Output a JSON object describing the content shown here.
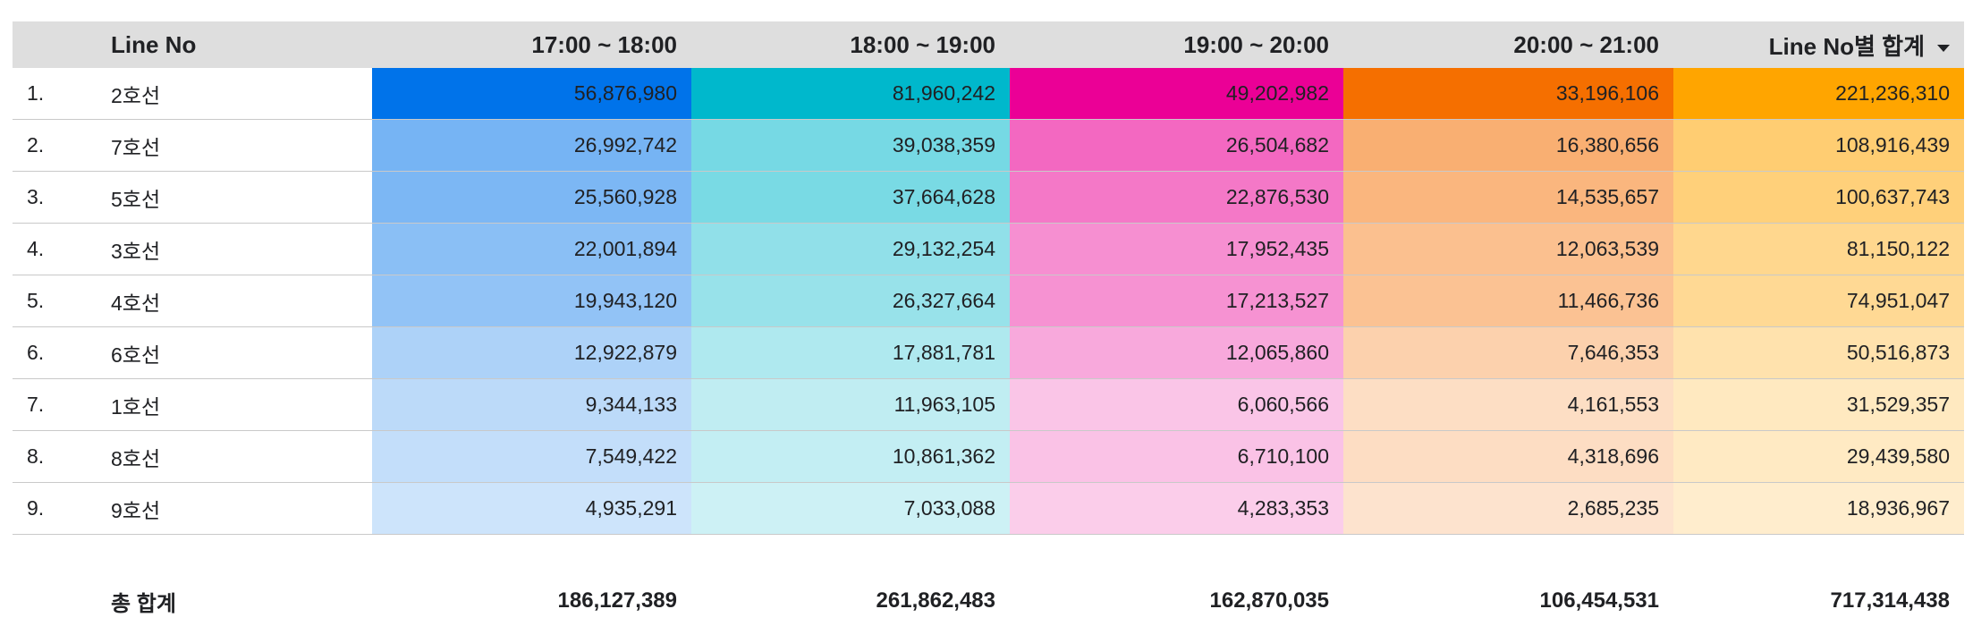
{
  "table": {
    "columns": [
      {
        "label": ""
      },
      {
        "label": "Line No"
      },
      {
        "label": "17:00 ~ 18:00"
      },
      {
        "label": "18:00 ~ 19:00"
      },
      {
        "label": "19:00 ~ 20:00"
      },
      {
        "label": "20:00 ~ 21:00"
      },
      {
        "label": "Line No별 합계",
        "sorted": "descending",
        "icon": "sort-desc-icon"
      }
    ],
    "rows": [
      {
        "index": "1.",
        "line": "2호선",
        "values": [
          "56,876,980",
          "81,960,242",
          "49,202,982",
          "33,196,106",
          "221,236,310"
        ]
      },
      {
        "index": "2.",
        "line": "7호선",
        "values": [
          "26,992,742",
          "39,038,359",
          "26,504,682",
          "16,380,656",
          "108,916,439"
        ]
      },
      {
        "index": "3.",
        "line": "5호선",
        "values": [
          "25,560,928",
          "37,664,628",
          "22,876,530",
          "14,535,657",
          "100,637,743"
        ]
      },
      {
        "index": "4.",
        "line": "3호선",
        "values": [
          "22,001,894",
          "29,132,254",
          "17,952,435",
          "12,063,539",
          "81,150,122"
        ]
      },
      {
        "index": "5.",
        "line": "4호선",
        "values": [
          "19,943,120",
          "26,327,664",
          "17,213,527",
          "11,466,736",
          "74,951,047"
        ]
      },
      {
        "index": "6.",
        "line": "6호선",
        "values": [
          "12,922,879",
          "17,881,781",
          "12,065,860",
          "7,646,353",
          "50,516,873"
        ]
      },
      {
        "index": "7.",
        "line": "1호선",
        "values": [
          "9,344,133",
          "11,963,105",
          "6,060,566",
          "4,161,553",
          "31,529,357"
        ]
      },
      {
        "index": "8.",
        "line": "8호선",
        "values": [
          "7,549,422",
          "10,861,362",
          "6,710,100",
          "4,318,696",
          "29,439,580"
        ]
      },
      {
        "index": "9.",
        "line": "9호선",
        "values": [
          "4,935,291",
          "7,033,088",
          "4,283,353",
          "2,685,235",
          "18,936,967"
        ]
      }
    ],
    "totals": {
      "label": "총 합계",
      "values": [
        "186,127,389",
        "261,862,483",
        "162,870,035",
        "106,454,531",
        "717,314,438"
      ]
    }
  },
  "colors": {
    "header_bg": "#dedede",
    "heatmap": [
      "#0073ea",
      "#00b8cc",
      "#eb0096",
      "#f56f00",
      "#ffa500"
    ]
  }
}
